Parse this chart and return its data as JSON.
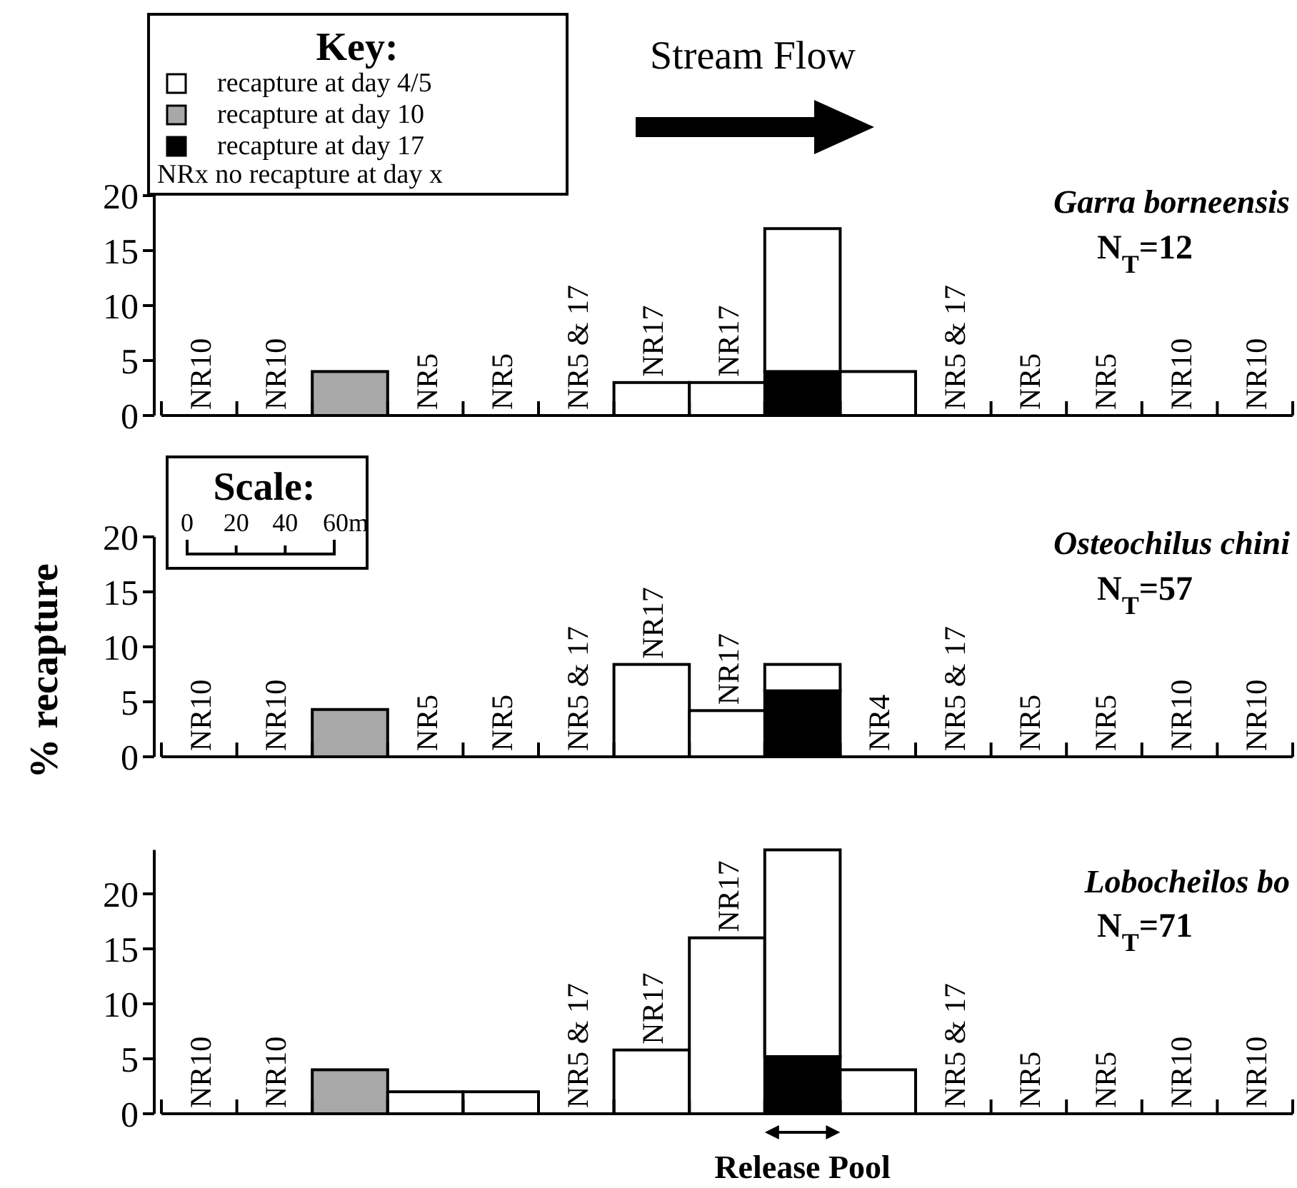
{
  "chart_data": [
    {
      "type": "bar",
      "title": "Garra borneensis",
      "subtitle": "N$_{T}$=12",
      "legend_title": "Key:",
      "legend": "top left",
      "stacked": true,
      "tick_labels": "y",
      "categories": [
        null,
        null,
        null,
        null,
        null,
        null,
        null,
        null,
        null,
        null,
        null,
        null,
        null,
        null,
        null
      ],
      "ylim": [
        0,
        20
      ],
      "yticks": [
        0,
        5,
        10,
        15,
        20
      ],
      "series": [
        {
          "name": "recapture at day 17",
          "color": "#000000",
          "values": [
            null,
            null,
            null,
            null,
            null,
            null,
            null,
            null,
            4,
            null,
            null,
            null,
            null,
            null,
            null
          ]
        },
        {
          "name": "recapture at day 10",
          "color": "#a8a8a8",
          "values": [
            null,
            null,
            4,
            null,
            null,
            null,
            null,
            null,
            null,
            null,
            null,
            null,
            null,
            null,
            null
          ]
        },
        {
          "name": "recapture at day 4/5",
          "color": "#ffffff",
          "values": [
            null,
            null,
            null,
            null,
            null,
            null,
            3,
            3,
            13,
            4,
            null,
            null,
            null,
            null,
            null
          ],
          "value_labels": [
            "NR10",
            "NR10",
            null,
            "NR5",
            "NR5",
            "NR5 & 17",
            "NR17",
            "NR17",
            null,
            null,
            "NR5 & 17",
            "NR5",
            "NR5",
            "NR10",
            "NR10"
          ]
        }
      ],
      "annotations": [
        "NRx  no recapture at day x",
        "Stream Flow"
      ]
    },
    {
      "type": "bar",
      "title": "Osteochilus chini",
      "subtitle": "N$_{T}$=57",
      "ylabel": "% recapture",
      "stacked": true,
      "tick_labels": "y",
      "categories": [
        null,
        null,
        null,
        null,
        null,
        null,
        null,
        null,
        null,
        null,
        null,
        null,
        null,
        null,
        null
      ],
      "ylim": [
        0,
        20
      ],
      "yticks": [
        0,
        5,
        10,
        15,
        20
      ],
      "series": [
        {
          "color": "#000000",
          "values": [
            null,
            null,
            null,
            null,
            null,
            null,
            null,
            null,
            6,
            null,
            null,
            null,
            null,
            null,
            null
          ]
        },
        {
          "color": "#a8a8a8",
          "values": [
            null,
            null,
            4.3,
            null,
            null,
            null,
            null,
            null,
            null,
            null,
            null,
            null,
            null,
            null,
            null
          ]
        },
        {
          "color": "#ffffff",
          "values": [
            null,
            null,
            null,
            null,
            null,
            null,
            8.4,
            4.2,
            2.4,
            null,
            null,
            null,
            null,
            null,
            null
          ],
          "value_labels": [
            "NR10",
            "NR10",
            null,
            "NR5",
            "NR5",
            "NR5 & 17",
            "NR17",
            "NR17",
            null,
            "NR4",
            "NR5 & 17",
            "NR5",
            "NR5",
            "NR10",
            "NR10"
          ]
        }
      ],
      "annotations": [
        "Scale:",
        "0 20 40 60m"
      ]
    },
    {
      "type": "bar",
      "title": "Lobocheilos bo",
      "subtitle": "N$_{T}$=71",
      "stacked": true,
      "tick_labels": "xy",
      "categories": [
        null,
        null,
        null,
        null,
        null,
        null,
        null,
        null,
        "Release Pool",
        null,
        null,
        null,
        null,
        null,
        null
      ],
      "ylim": [
        0,
        24
      ],
      "yticks": [
        0,
        5,
        10,
        15,
        20
      ],
      "series": [
        {
          "color": "#000000",
          "values": [
            null,
            null,
            null,
            null,
            null,
            null,
            null,
            null,
            5.2,
            null,
            null,
            null,
            null,
            null,
            null
          ]
        },
        {
          "color": "#a8a8a8",
          "values": [
            null,
            null,
            4,
            null,
            null,
            null,
            null,
            null,
            null,
            null,
            null,
            null,
            null,
            null,
            null
          ]
        },
        {
          "color": "#ffffff",
          "values": [
            null,
            null,
            null,
            2,
            2,
            null,
            5.8,
            16,
            18.8,
            4,
            null,
            null,
            null,
            null,
            null
          ],
          "value_labels": [
            "NR10",
            "NR10",
            null,
            null,
            null,
            "NR5 & 17",
            "NR17",
            "NR17",
            null,
            null,
            "NR5 & 17",
            "NR5",
            "NR5",
            "NR10",
            "NR10"
          ]
        }
      ]
    }
  ]
}
